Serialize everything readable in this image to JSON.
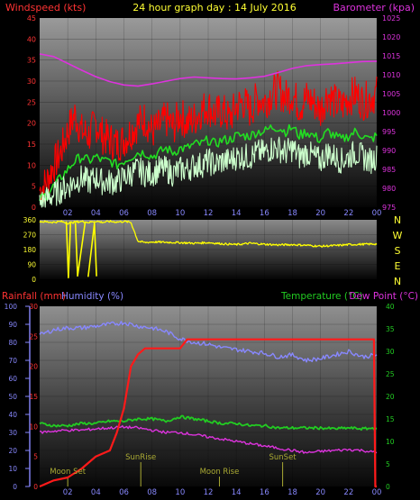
{
  "header": {
    "left_label": "Windspeed (kts)",
    "center_label": "24 hour graph day : 14 July 2016",
    "right_label": "Barometer (kpa)"
  },
  "colors": {
    "background": "#000000",
    "wind_gust": "#ff0000",
    "wind_avg": "#22dd22",
    "wind_speed": "#ccffcc",
    "barometer": "#dd33dd",
    "direction": "#ffff00",
    "rainfall": "#ff1a1a",
    "humidity": "#8888ff",
    "temperature": "#22cc22",
    "dew_point": "#dd33dd",
    "moon_sun_markers": "#aaaa33",
    "axis_label_left": "#ff3333",
    "axis_label_right": "#dd33dd",
    "title_yellow": "#ffff33",
    "dir_letters": "#ffff33"
  },
  "chart_data": [
    {
      "id": "wind-baro",
      "type": "line",
      "ylabel_left": "Windspeed (kts)",
      "ylabel_right": "Barometer (kpa)",
      "ylim_left": [
        0,
        45
      ],
      "ylim_right": [
        975,
        1025
      ],
      "left_ticks": [
        "0",
        "5",
        "10",
        "15",
        "20",
        "25",
        "30",
        "35",
        "40",
        "45"
      ],
      "right_ticks": [
        "975",
        "980",
        "985",
        "990",
        "995",
        "1000",
        "1005",
        "1010",
        "1015",
        "1020",
        "1025"
      ],
      "x_ticks": [
        "02",
        "04",
        "06",
        "08",
        "10",
        "12",
        "14",
        "16",
        "18",
        "20",
        "22",
        "00"
      ],
      "xlim_hours": [
        0,
        24
      ],
      "series": [
        {
          "key": "gust",
          "color_key": "wind_gust",
          "x": [
            0,
            0.5,
            1,
            1.5,
            2,
            2.5,
            3,
            3.5,
            4,
            4.5,
            5,
            5.5,
            6,
            6.5,
            7,
            7.5,
            8,
            8.5,
            9,
            9.5,
            10,
            10.5,
            11,
            11.5,
            12,
            12.5,
            13,
            13.5,
            14,
            14.5,
            15,
            15.5,
            16,
            16.5,
            17,
            17.5,
            18,
            18.5,
            19,
            19.5,
            20,
            20.5,
            21,
            21.5,
            22,
            22.5,
            23,
            23.5,
            24
          ],
          "y": [
            4,
            6,
            10,
            13,
            18,
            22,
            18,
            17,
            20,
            17,
            16,
            15,
            16,
            18,
            20,
            21,
            18,
            19,
            21,
            19,
            22,
            20,
            21,
            23,
            24,
            22,
            23,
            21,
            24,
            25,
            23,
            26,
            25,
            27,
            28,
            26,
            27,
            24,
            26,
            25,
            23,
            27,
            25,
            24,
            26,
            27,
            25,
            26,
            27
          ]
        },
        {
          "key": "avg",
          "color_key": "wind_avg",
          "x": [
            0,
            0.5,
            1,
            1.5,
            2,
            2.5,
            3,
            3.5,
            4,
            4.5,
            5,
            5.5,
            6,
            6.5,
            7,
            7.5,
            8,
            8.5,
            9,
            9.5,
            10,
            10.5,
            11,
            11.5,
            12,
            12.5,
            13,
            13.5,
            14,
            14.5,
            15,
            15.5,
            16,
            16.5,
            17,
            17.5,
            18,
            18.5,
            19,
            19.5,
            20,
            20.5,
            21,
            21.5,
            22,
            22.5,
            23,
            23.5,
            24
          ],
          "y": [
            2,
            3,
            5,
            7,
            9,
            11,
            12,
            11,
            12,
            11,
            11,
            10,
            11,
            12,
            13,
            13,
            12,
            13,
            14,
            13,
            14,
            14,
            15,
            15,
            16,
            15,
            16,
            16,
            17,
            17,
            17,
            18,
            18,
            19,
            19,
            18,
            19,
            17,
            18,
            17,
            16,
            18,
            17,
            16,
            17,
            18,
            17,
            16,
            17
          ]
        },
        {
          "key": "speed",
          "color_key": "wind_speed",
          "x": [
            0,
            0.5,
            1,
            1.5,
            2,
            2.5,
            3,
            3.5,
            4,
            4.5,
            5,
            5.5,
            6,
            6.5,
            7,
            7.5,
            8,
            8.5,
            9,
            9.5,
            10,
            10.5,
            11,
            11.5,
            12,
            12.5,
            13,
            13.5,
            14,
            14.5,
            15,
            15.5,
            16,
            16.5,
            17,
            17.5,
            18,
            18.5,
            19,
            19.5,
            20,
            20.5,
            21,
            21.5,
            22,
            22.5,
            23,
            23.5,
            24
          ],
          "y": [
            1,
            2,
            3,
            4,
            5,
            6,
            7,
            6,
            7,
            6,
            6,
            6,
            7,
            8,
            9,
            8,
            8,
            9,
            9,
            8,
            9,
            9,
            10,
            10,
            11,
            10,
            11,
            11,
            12,
            12,
            12,
            13,
            13,
            14,
            14,
            13,
            14,
            12,
            13,
            12,
            11,
            13,
            12,
            11,
            12,
            13,
            12,
            11,
            12
          ]
        },
        {
          "key": "barometer",
          "axis": "right",
          "color_key": "barometer",
          "x": [
            0,
            1,
            2,
            3,
            4,
            5,
            6,
            7,
            8,
            9,
            10,
            11,
            12,
            13,
            14,
            15,
            16,
            17,
            18,
            19,
            20,
            21,
            22,
            23,
            24
          ],
          "y": [
            1015.5,
            1014.8,
            1013,
            1011.2,
            1009.5,
            1008.2,
            1007.3,
            1007,
            1007.6,
            1008.3,
            1009,
            1009.4,
            1009.2,
            1009,
            1008.9,
            1009.2,
            1009.6,
            1010.6,
            1011.7,
            1012.4,
            1012.7,
            1012.9,
            1013.2,
            1013.5,
            1013.6
          ]
        }
      ]
    },
    {
      "id": "wind-direction",
      "type": "line",
      "ylim": [
        0,
        360
      ],
      "left_ticks": [
        "0",
        "90",
        "180",
        "270",
        "360"
      ],
      "dir_labels": [
        "N",
        "W",
        "S",
        "E",
        "N"
      ],
      "xlim_hours": [
        0,
        24
      ],
      "series": [
        {
          "key": "direction",
          "color_key": "direction",
          "x": [
            0,
            1,
            1.5,
            2,
            2.5,
            3,
            3.5,
            4,
            4.5,
            5,
            5.5,
            6,
            6.5,
            7,
            7.5,
            8,
            9,
            10,
            11,
            12,
            13,
            14,
            15,
            16,
            17,
            18,
            19,
            20,
            21,
            22,
            23,
            24
          ],
          "y": [
            350,
            345,
            350,
            340,
            346,
            350,
            344,
            352,
            345,
            350,
            347,
            350,
            345,
            230,
            222,
            226,
            224,
            222,
            218,
            222,
            215,
            210,
            218,
            212,
            208,
            210,
            206,
            200,
            204,
            210,
            212,
            214
          ]
        },
        {
          "key": "direction-dips",
          "color_key": "direction",
          "x": [
            1.9,
            2.05,
            2.2,
            2.55,
            2.7,
            3.25,
            3.45,
            3.9,
            4.05
          ],
          "y": [
            350,
            10,
            350,
            340,
            20,
            350,
            15,
            340,
            18
          ]
        }
      ]
    },
    {
      "id": "rain-hum-temp",
      "type": "line",
      "label_rain": "Rainfall (mm)",
      "label_humidity": "Humidity (%)",
      "label_temp": "Temperature (°C)",
      "label_dew": "Dew Point (°C)",
      "ylim_humidity": [
        0,
        100
      ],
      "ylim_rain": [
        0,
        30
      ],
      "ylim_temp": [
        0,
        40
      ],
      "humidity_ticks": [
        "0",
        "10",
        "20",
        "30",
        "40",
        "50",
        "60",
        "70",
        "80",
        "90",
        "100"
      ],
      "rain_ticks": [
        "0",
        "5",
        "10",
        "15",
        "20",
        "25",
        "30"
      ],
      "temp_ticks": [
        "0",
        "5",
        "10",
        "15",
        "20",
        "25",
        "30",
        "35",
        "40"
      ],
      "x_ticks": [
        "02",
        "04",
        "06",
        "08",
        "10",
        "12",
        "14",
        "16",
        "18",
        "20",
        "22",
        "00"
      ],
      "xlim_hours": [
        0,
        24
      ],
      "annotations": [
        {
          "label": "Moon Set",
          "hour": 2.0
        },
        {
          "label": "SunRise",
          "hour": 7.2
        },
        {
          "label": "Moon Rise",
          "hour": 12.8
        },
        {
          "label": "SunSet",
          "hour": 17.3
        }
      ],
      "series": [
        {
          "key": "humidity",
          "axis": "humidity",
          "color_key": "humidity",
          "x": [
            0,
            1,
            2,
            3,
            4,
            5,
            6,
            7,
            8,
            9,
            10,
            11,
            12,
            13,
            14,
            15,
            16,
            17,
            18,
            19,
            20,
            21,
            22,
            23,
            24
          ],
          "y": [
            84,
            87,
            88,
            88,
            89,
            90,
            91,
            89,
            88,
            86,
            82,
            80,
            79,
            77,
            76,
            75,
            74,
            72,
            73,
            70,
            71,
            73,
            75,
            72,
            73
          ]
        },
        {
          "key": "temperature",
          "axis": "temp",
          "color_key": "temperature",
          "x": [
            0,
            1,
            2,
            3,
            4,
            5,
            6,
            7,
            8,
            9,
            10,
            11,
            12,
            13,
            14,
            15,
            16,
            17,
            18,
            19,
            20,
            21,
            22,
            23,
            24
          ],
          "y": [
            14,
            13.5,
            13.5,
            14,
            14,
            14.5,
            14.5,
            15,
            15,
            14.5,
            15.5,
            15,
            14.5,
            14,
            14,
            13.5,
            13.5,
            13,
            13,
            13,
            13,
            12.8,
            13,
            12.8,
            13
          ]
        },
        {
          "key": "dew",
          "axis": "temp",
          "color_key": "dew_point",
          "x": [
            0,
            1,
            2,
            3,
            4,
            5,
            6,
            7,
            8,
            9,
            10,
            11,
            12,
            13,
            14,
            15,
            16,
            17,
            18,
            19,
            20,
            21,
            22,
            23,
            24
          ],
          "y": [
            12,
            12.3,
            12.5,
            12.5,
            12.8,
            13,
            13.2,
            13,
            12.5,
            12,
            12,
            11.5,
            11,
            10.5,
            10,
            9.5,
            9,
            8.5,
            8,
            7.5,
            7.8,
            8,
            8.2,
            8,
            7.5
          ]
        },
        {
          "key": "rain",
          "axis": "rain",
          "color_key": "rainfall",
          "x": [
            0,
            1,
            2,
            3,
            4,
            5,
            5.5,
            6,
            6.5,
            7,
            7.5,
            8,
            9,
            10,
            10.5,
            11,
            12,
            13,
            14,
            15,
            16,
            17,
            18,
            19,
            20,
            21,
            22,
            23,
            23.8,
            23.9,
            24
          ],
          "y": [
            0,
            1,
            1.5,
            3,
            5,
            6,
            9,
            13,
            20,
            22,
            23,
            23,
            23,
            23,
            24.5,
            24.5,
            24.5,
            24.5,
            24.5,
            24.5,
            24.5,
            24.5,
            24.5,
            24.5,
            24.5,
            24.5,
            24.5,
            24.5,
            24.5,
            0,
            0
          ]
        }
      ]
    }
  ]
}
